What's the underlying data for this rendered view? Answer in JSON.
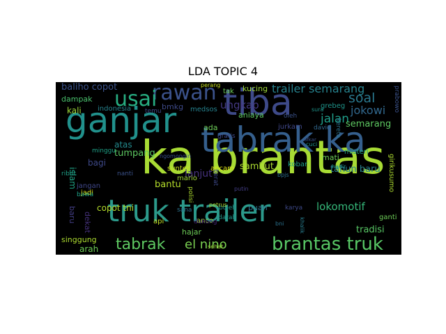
{
  "chart_data": {
    "type": "wordcloud",
    "title": "LDA TOPIC 4",
    "background": "#000000",
    "palette": "viridis",
    "words": [
      {
        "text": "ka brantas",
        "color": "#a8db34"
      },
      {
        "text": "truk trailer",
        "color": "#2c9a8b"
      },
      {
        "text": "tabrak ka",
        "color": "#355f8d"
      },
      {
        "text": "tiba",
        "color": "#3e4a89"
      },
      {
        "text": "ganjar",
        "color": "#21918c"
      },
      {
        "text": "brantas truk",
        "color": "#58c765"
      },
      {
        "text": "rawan",
        "color": "#3b528b"
      },
      {
        "text": "usai",
        "color": "#27ad81"
      },
      {
        "text": "tabrak",
        "color": "#5ec962"
      },
      {
        "text": "trailer semarang",
        "color": "#26828e"
      },
      {
        "text": "el nino",
        "color": "#7ad151"
      },
      {
        "text": "soal",
        "color": "#2a788e"
      },
      {
        "text": "jokowi",
        "color": "#31688e"
      },
      {
        "text": "jalan",
        "color": "#1f9e89"
      },
      {
        "text": "lokomotif",
        "color": "#35b779"
      },
      {
        "text": "baliho copot",
        "color": "#3b528b"
      },
      {
        "text": "ungkap",
        "color": "#443983"
      },
      {
        "text": "semarang",
        "color": "#5ec962"
      },
      {
        "text": "lanjut",
        "color": "#46327e"
      },
      {
        "text": "tumpang",
        "color": "#5ec962"
      },
      {
        "text": "copot tni",
        "color": "#b5de2b"
      },
      {
        "text": "bantu",
        "color": "#b5de2b"
      },
      {
        "text": "bagi",
        "color": "#3e4989"
      },
      {
        "text": "atas",
        "color": "#238a8d"
      },
      {
        "text": "tahun baru",
        "color": "#277f8e"
      },
      {
        "text": "sambut",
        "color": "#addc30"
      },
      {
        "text": "dampak",
        "color": "#4ac16d"
      },
      {
        "text": "kali",
        "color": "#9fda3a"
      },
      {
        "text": "bmkg",
        "color": "#3e4a89"
      },
      {
        "text": "indonesia",
        "color": "#26828e"
      },
      {
        "text": "medsos",
        "color": "#26828e"
      },
      {
        "text": "singgung",
        "color": "#addc30"
      },
      {
        "text": "arah",
        "color": "#6ece58"
      },
      {
        "text": "hajar",
        "color": "#6ece58"
      },
      {
        "text": "anco",
        "color": "#9fda3a"
      },
      {
        "text": "ganti",
        "color": "#6ece58"
      },
      {
        "text": "api",
        "color": "#c2df23"
      },
      {
        "text": "dukung",
        "color": "#482677"
      },
      {
        "text": "puan",
        "color": "#2c728e"
      },
      {
        "text": "tradisi",
        "color": "#58c765"
      },
      {
        "text": "mati",
        "color": "#6ece58"
      },
      {
        "text": "jadi",
        "color": "#dfe318"
      },
      {
        "text": "islam",
        "color": "#20a386"
      },
      {
        "text": "baru",
        "color": "#433e85"
      },
      {
        "text": "dekat",
        "color": "#46327e"
      },
      {
        "text": "bawa",
        "color": "#1fa187"
      },
      {
        "text": "jangan",
        "color": "#3f4788"
      },
      {
        "text": "sunter",
        "color": "#c8e020"
      },
      {
        "text": "mario",
        "color": "#a2da37"
      },
      {
        "text": "nanti",
        "color": "#3b528b"
      },
      {
        "text": "ancam",
        "color": "#dde318"
      },
      {
        "text": "boleh",
        "color": "#1f958b"
      },
      {
        "text": "darah",
        "color": "#1f958b"
      },
      {
        "text": "kucing",
        "color": "#9fda3a"
      },
      {
        "text": "tak",
        "color": "#6ece58"
      },
      {
        "text": "aniaya",
        "color": "#5ec962"
      },
      {
        "text": "jurkam",
        "color": "#3f4788"
      },
      {
        "text": "grebeg",
        "color": "#1f958b"
      },
      {
        "text": "david",
        "color": "#31688e"
      },
      {
        "text": "misteri",
        "color": "#1fa187"
      },
      {
        "text": "kereta",
        "color": "#2c728e"
      },
      {
        "text": "kobar",
        "color": "#1fa187"
      },
      {
        "text": "girikusumo",
        "color": "#addc30"
      },
      {
        "text": "prabowo",
        "color": "#3b528b"
      },
      {
        "text": "oleh",
        "color": "#3b528b"
      },
      {
        "text": "sura",
        "color": "#1f958b"
      },
      {
        "text": "ada",
        "color": "#6ece58"
      },
      {
        "text": "gratis",
        "color": "#3e4989"
      },
      {
        "text": "berat",
        "color": "#3e4989"
      },
      {
        "text": "temu",
        "color": "#3e4989"
      },
      {
        "text": "minggu",
        "color": "#1fa187"
      },
      {
        "text": "karya",
        "color": "#3e4989"
      },
      {
        "text": "polisi",
        "color": "#addc30"
      },
      {
        "text": "khalik",
        "color": "#287d8e"
      },
      {
        "text": "hadir",
        "color": "#1f958b"
      },
      {
        "text": "putin",
        "color": "#433e85"
      },
      {
        "text": "sana",
        "color": "#2c728e"
      },
      {
        "text": "bpjs",
        "color": "#2c728e"
      },
      {
        "text": "cuci",
        "color": "#1f958b"
      },
      {
        "text": "ribut",
        "color": "#1fa187"
      },
      {
        "text": "ngomongin",
        "color": "#3b528b"
      },
      {
        "text": "sehat",
        "color": "#9fda3a"
      },
      {
        "text": "afkar",
        "color": "#3b528b"
      },
      {
        "text": "bni",
        "color": "#2c728e"
      },
      {
        "text": "petrus",
        "color": "#addc30"
      },
      {
        "text": "perang",
        "color": "#c8e020"
      }
    ]
  }
}
